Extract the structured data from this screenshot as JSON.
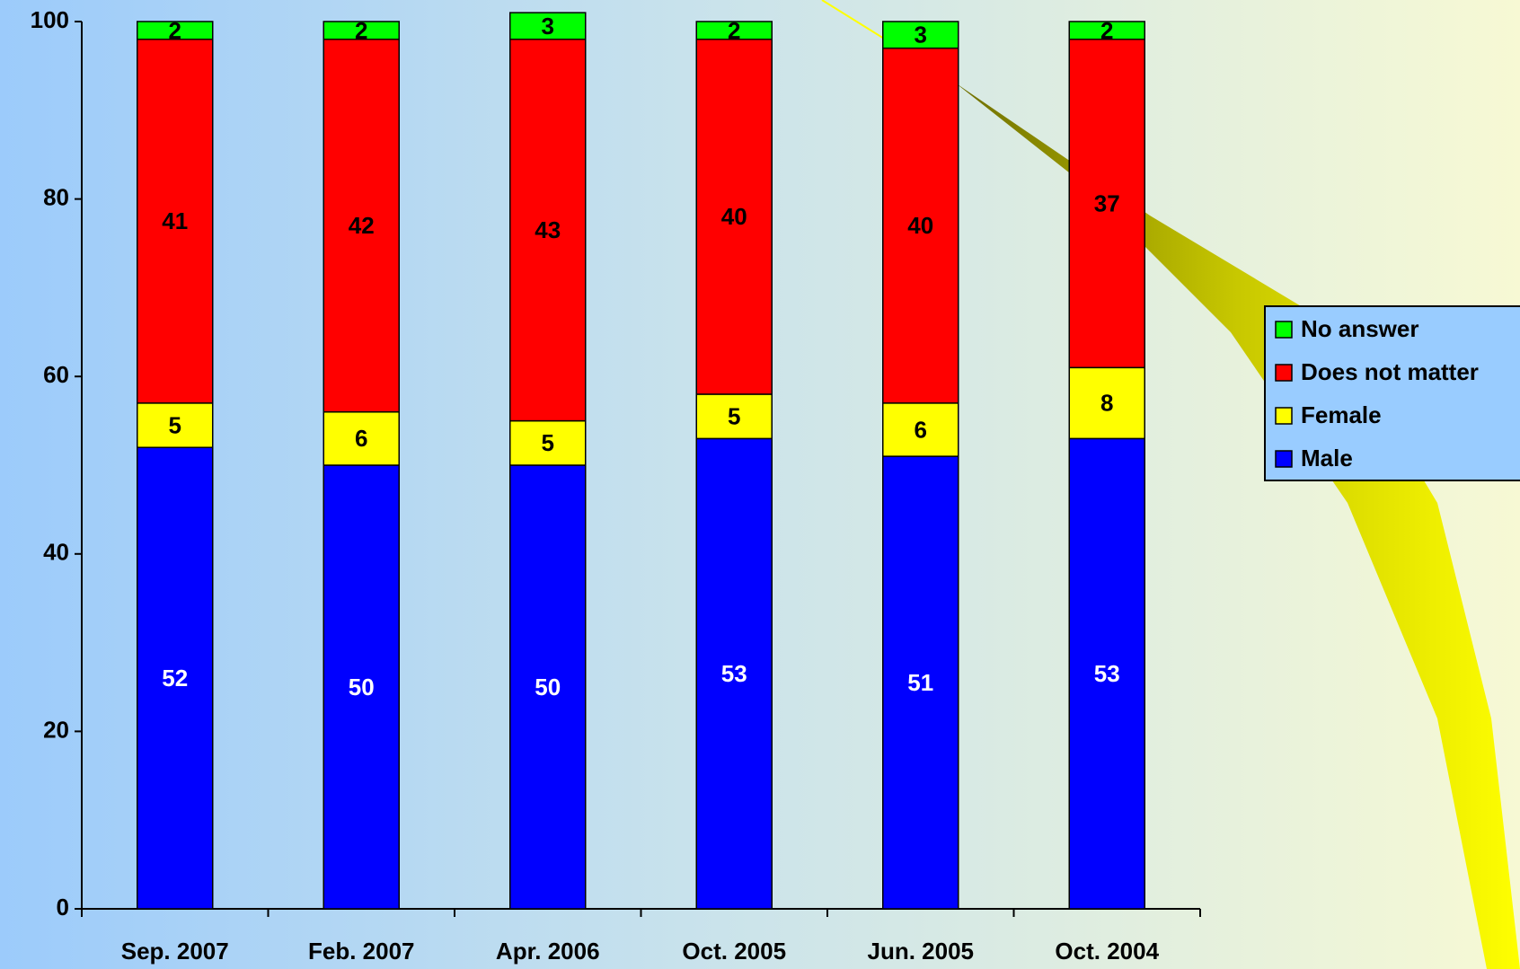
{
  "chart_data": {
    "type": "stacked_bar",
    "categories": [
      "Sep. 2007",
      "Feb. 2007",
      "Apr. 2006",
      "Oct. 2005",
      "Jun. 2005",
      "Oct. 2004"
    ],
    "series": [
      {
        "name": "Male",
        "color": "#0000ff",
        "label_color": "#ffffff",
        "values": [
          52,
          50,
          50,
          53,
          51,
          53
        ]
      },
      {
        "name": "Female",
        "color": "#ffff00",
        "label_color": "#000000",
        "values": [
          5,
          6,
          5,
          5,
          6,
          8
        ]
      },
      {
        "name": "Does not matter",
        "color": "#ff0000",
        "label_color": "#000000",
        "values": [
          41,
          42,
          43,
          40,
          40,
          37
        ]
      },
      {
        "name": "No answer",
        "color": "#00ff00",
        "label_color": "#000000",
        "values": [
          2,
          2,
          3,
          2,
          3,
          2
        ]
      }
    ],
    "ylim": [
      0,
      100
    ],
    "yticks": [
      0,
      20,
      40,
      60,
      80,
      100
    ],
    "grid": false,
    "legend": "right"
  }
}
